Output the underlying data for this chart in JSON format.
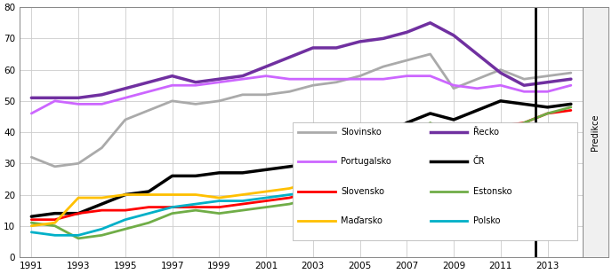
{
  "years": [
    1991,
    1992,
    1993,
    1994,
    1995,
    1996,
    1997,
    1998,
    1999,
    2000,
    2001,
    2002,
    2003,
    2004,
    2005,
    2006,
    2007,
    2008,
    2009,
    2010,
    2011,
    2012,
    2013,
    2014
  ],
  "series": {
    "Slovinsko": {
      "color": "#aaaaaa",
      "linewidth": 2.0,
      "values": [
        32,
        29,
        30,
        35,
        44,
        47,
        50,
        49,
        50,
        52,
        52,
        53,
        55,
        56,
        58,
        61,
        63,
        65,
        54,
        57,
        60,
        57,
        58,
        59
      ]
    },
    "Řecko": {
      "color": "#7030a0",
      "linewidth": 2.5,
      "values": [
        51,
        51,
        51,
        52,
        54,
        56,
        58,
        56,
        57,
        58,
        61,
        64,
        67,
        67,
        69,
        70,
        72,
        75,
        71,
        65,
        59,
        55,
        56,
        57
      ]
    },
    "Portugalsko": {
      "color": "#cc66ff",
      "linewidth": 2.0,
      "values": [
        46,
        50,
        49,
        49,
        51,
        53,
        55,
        55,
        56,
        57,
        58,
        57,
        57,
        57,
        57,
        57,
        58,
        58,
        55,
        54,
        55,
        53,
        53,
        55
      ]
    },
    "ČR": {
      "color": "#000000",
      "linewidth": 2.5,
      "values": [
        13,
        14,
        14,
        17,
        20,
        21,
        26,
        26,
        27,
        27,
        28,
        29,
        30,
        33,
        35,
        39,
        43,
        46,
        44,
        47,
        50,
        49,
        48,
        49
      ]
    },
    "Slovensko": {
      "color": "#ff0000",
      "linewidth": 2.0,
      "values": [
        12,
        12,
        14,
        15,
        15,
        16,
        16,
        16,
        16,
        17,
        18,
        19,
        21,
        23,
        26,
        30,
        33,
        41,
        39,
        39,
        42,
        43,
        46,
        47
      ]
    },
    "Estonsko": {
      "color": "#70ad47",
      "linewidth": 2.0,
      "values": [
        11,
        10,
        6,
        7,
        9,
        11,
        14,
        15,
        14,
        15,
        16,
        17,
        19,
        22,
        26,
        30,
        35,
        43,
        38,
        38,
        40,
        43,
        46,
        48
      ]
    },
    "Maďarsko": {
      "color": "#ffc000",
      "linewidth": 2.0,
      "values": [
        10,
        11,
        19,
        19,
        20,
        20,
        20,
        20,
        19,
        20,
        21,
        22,
        24,
        26,
        29,
        30,
        33,
        37,
        33,
        32,
        33,
        30,
        34,
        35
      ]
    },
    "Polsko": {
      "color": "#00b0c8",
      "linewidth": 2.0,
      "values": [
        8,
        7,
        7,
        9,
        12,
        14,
        16,
        17,
        18,
        18,
        19,
        20,
        21,
        23,
        24,
        27,
        30,
        33,
        31,
        33,
        34,
        34,
        35,
        36
      ]
    }
  },
  "predikce_x": 2012.5,
  "xlim_main": [
    1990.5,
    2014.5
  ],
  "xlim_plot": [
    1991,
    2014.5
  ],
  "ylim": [
    0,
    80
  ],
  "xticks": [
    1991,
    1993,
    1995,
    1997,
    1999,
    2001,
    2003,
    2005,
    2007,
    2009,
    2011,
    2013
  ],
  "yticks": [
    0,
    10,
    20,
    30,
    40,
    50,
    60,
    70,
    80
  ],
  "legend_entries_col1": [
    "Slovinsko",
    "Portugalsko",
    "Slovensko",
    "Maďarsko"
  ],
  "legend_entries_col2": [
    "Řecko",
    "ČR",
    "Estonsko",
    "Polsko"
  ],
  "predikce_label": "Predikce",
  "background_color": "#ffffff",
  "grid_color": "#cccccc"
}
